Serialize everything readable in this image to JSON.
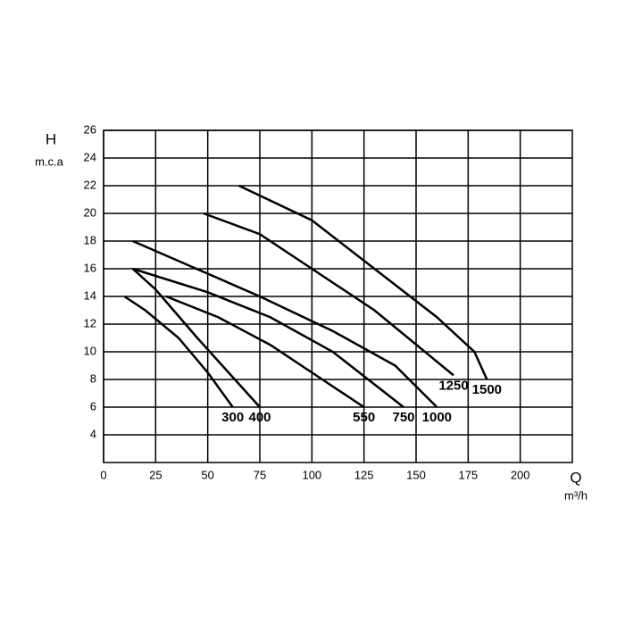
{
  "chart_data": {
    "type": "line",
    "y_label": "H",
    "y_unit": "m.c.a",
    "x_label": "Q",
    "x_unit": "m³/h",
    "xlim": [
      0,
      225
    ],
    "xticks": [
      0,
      25,
      50,
      75,
      100,
      125,
      150,
      175,
      200
    ],
    "ylim": [
      2,
      26
    ],
    "yticks": [
      4,
      6,
      8,
      10,
      12,
      14,
      16,
      18,
      20,
      22,
      24,
      26
    ],
    "grid": true,
    "series": [
      {
        "name": "300",
        "color": "#000000",
        "x": [
          10,
          20,
          36,
          50,
          62
        ],
        "values": [
          14,
          13,
          11,
          8.5,
          6
        ]
      },
      {
        "name": "400",
        "color": "#000000",
        "x": [
          14,
          25,
          45,
          60,
          75
        ],
        "values": [
          16,
          14.5,
          11,
          8.5,
          6
        ]
      },
      {
        "name": "550",
        "color": "#000000",
        "x": [
          30,
          55,
          80,
          105,
          125
        ],
        "values": [
          14,
          12.5,
          10.5,
          8,
          6
        ]
      },
      {
        "name": "750",
        "color": "#000000",
        "x": [
          14,
          50,
          80,
          110,
          144
        ],
        "values": [
          16,
          14.3,
          12.5,
          10,
          6
        ]
      },
      {
        "name": "1000",
        "color": "#000000",
        "x": [
          14,
          40,
          75,
          110,
          140,
          160
        ],
        "values": [
          18,
          16.3,
          14,
          11.5,
          9,
          6
        ]
      },
      {
        "name": "1250",
        "color": "#000000",
        "x": [
          48,
          75,
          100,
          130,
          168
        ],
        "values": [
          20,
          18.5,
          16,
          13,
          8.3
        ]
      },
      {
        "name": "1500",
        "color": "#000000",
        "x": [
          65,
          100,
          130,
          160,
          178,
          184
        ],
        "values": [
          22,
          19.5,
          16,
          12.5,
          10,
          8
        ]
      }
    ]
  }
}
